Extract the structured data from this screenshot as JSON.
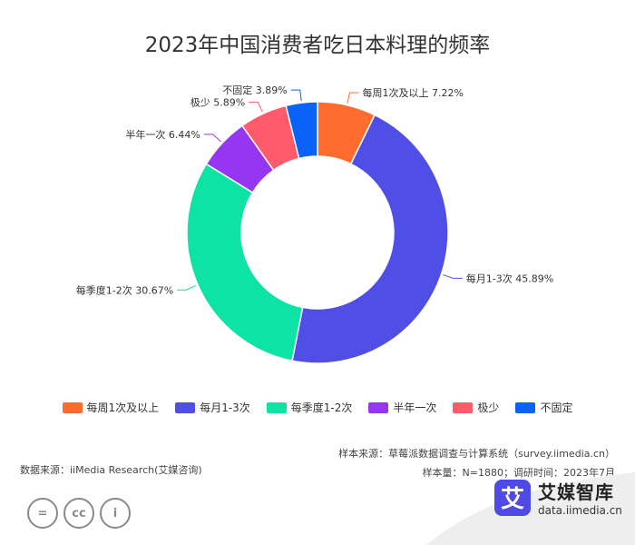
{
  "chart_data": {
    "type": "pie",
    "variant": "donut",
    "title": "2023年中国消费者吃日本料理的频率",
    "categories": [
      "每周1次及以上",
      "每月1-3次",
      "每季度1-2次",
      "半年一次",
      "极少",
      "不固定"
    ],
    "values": [
      7.22,
      45.89,
      30.67,
      6.44,
      5.89,
      3.89
    ],
    "labels": [
      "每周1次及以上 7.22%",
      "每月1-3次 45.89%",
      "每季度1-2次 30.67%",
      "半年一次 6.44%",
      "极少 5.89%",
      "不固定 3.89%"
    ],
    "colors": [
      "#ff6d2e",
      "#4f4ee6",
      "#0ee3a6",
      "#9436f2",
      "#ff5b6b",
      "#0a63f6"
    ],
    "unit": "%",
    "legend_position": "bottom"
  },
  "footer": {
    "source": "数据来源：iiMedia Research(艾媒咨询)",
    "sample_source": "样本来源：草莓派数据调查与计算系统（survey.iimedia.cn）",
    "sample_info": "样本量：N=1880；调研时间：2023年7月"
  },
  "brand": {
    "logo_char": "艾",
    "name": "艾媒智库",
    "url": "data.iimedia.cn"
  },
  "license_icons": [
    "equal-icon",
    "cc-icon",
    "person-icon"
  ],
  "license_glyphs": [
    "=",
    "cc",
    "i"
  ]
}
